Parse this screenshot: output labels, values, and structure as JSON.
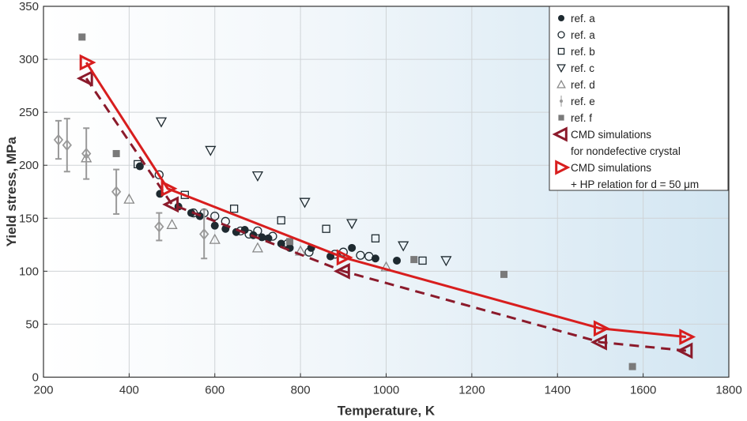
{
  "chart_data": {
    "type": "scatter",
    "xlabel": "Temperature, K",
    "ylabel": "Yield stress, MPa",
    "xlim": [
      200,
      1800
    ],
    "ylim": [
      0,
      350
    ],
    "xticks": [
      200,
      400,
      600,
      800,
      1000,
      1200,
      1400,
      1600,
      1800
    ],
    "yticks": [
      0,
      50,
      100,
      150,
      200,
      250,
      300,
      350
    ],
    "grid": true,
    "legend_position": "top-right",
    "colors": {
      "sim_nondefective": "#8b1a2b",
      "sim_hp": "#d81e1e",
      "ref_dark": "#1e2a30",
      "ref_gray": "#999999",
      "ref_f": "#7a7a7a"
    },
    "series": [
      {
        "name": "ref. a",
        "marker": "filled-circle",
        "points": [
          [
            425,
            199
          ],
          [
            472,
            173
          ],
          [
            515,
            161
          ],
          [
            545,
            155
          ],
          [
            565,
            152
          ],
          [
            600,
            143
          ],
          [
            625,
            140
          ],
          [
            650,
            137
          ],
          [
            670,
            139
          ],
          [
            690,
            134
          ],
          [
            710,
            132
          ],
          [
            725,
            131
          ],
          [
            755,
            126
          ],
          [
            775,
            122
          ],
          [
            825,
            122
          ],
          [
            870,
            114
          ],
          [
            920,
            122
          ],
          [
            975,
            112
          ],
          [
            1025,
            110
          ]
        ]
      },
      {
        "name": "ref. a",
        "marker": "open-circle",
        "points": [
          [
            470,
            191
          ],
          [
            550,
            155
          ],
          [
            575,
            155
          ],
          [
            600,
            152
          ],
          [
            625,
            147
          ],
          [
            660,
            138
          ],
          [
            680,
            135
          ],
          [
            700,
            138
          ],
          [
            735,
            133
          ],
          [
            770,
            126
          ],
          [
            820,
            118
          ],
          [
            880,
            116
          ],
          [
            900,
            118
          ],
          [
            940,
            115
          ],
          [
            960,
            114
          ]
        ]
      },
      {
        "name": "ref. b",
        "marker": "open-square",
        "points": [
          [
            420,
            201
          ],
          [
            530,
            172
          ],
          [
            645,
            159
          ],
          [
            755,
            148
          ],
          [
            860,
            140
          ],
          [
            975,
            131
          ],
          [
            1085,
            110
          ]
        ]
      },
      {
        "name": "ref. c",
        "marker": "down-triangle",
        "points": [
          [
            475,
            241
          ],
          [
            590,
            214
          ],
          [
            700,
            190
          ],
          [
            810,
            165
          ],
          [
            920,
            145
          ],
          [
            1040,
            124
          ],
          [
            1140,
            110
          ]
        ]
      },
      {
        "name": "ref. d",
        "marker": "up-triangle",
        "points": [
          [
            300,
            207
          ],
          [
            400,
            168
          ],
          [
            500,
            144
          ],
          [
            600,
            130
          ],
          [
            700,
            122
          ],
          [
            800,
            119
          ],
          [
            1000,
            104
          ]
        ]
      },
      {
        "name": "ref. e",
        "marker": "diamond-errorbar",
        "points": [
          [
            235,
            224,
            18
          ],
          [
            255,
            219,
            25
          ],
          [
            300,
            211,
            24
          ],
          [
            370,
            175,
            21
          ],
          [
            470,
            142,
            13
          ],
          [
            575,
            135,
            23
          ]
        ]
      },
      {
        "name": "ref. f",
        "marker": "filled-square",
        "points": [
          [
            290,
            321
          ],
          [
            370,
            211
          ],
          [
            775,
            128
          ],
          [
            1065,
            111
          ],
          [
            1275,
            97
          ],
          [
            1575,
            10
          ]
        ]
      },
      {
        "name": "CMD simulations",
        "name2": "for nondefective crystal",
        "marker": "left-triangle",
        "line": "dashed",
        "points": [
          [
            300,
            282
          ],
          [
            500,
            163
          ],
          [
            900,
            100
          ],
          [
            1500,
            33
          ],
          [
            1700,
            25
          ]
        ]
      },
      {
        "name": "CMD simulations",
        "name2": "+ HP relation for d = 50 μm",
        "marker": "right-triangle",
        "line": "solid",
        "points": [
          [
            300,
            297
          ],
          [
            490,
            178
          ],
          [
            900,
            113
          ],
          [
            1500,
            46
          ],
          [
            1700,
            38
          ]
        ]
      }
    ]
  }
}
